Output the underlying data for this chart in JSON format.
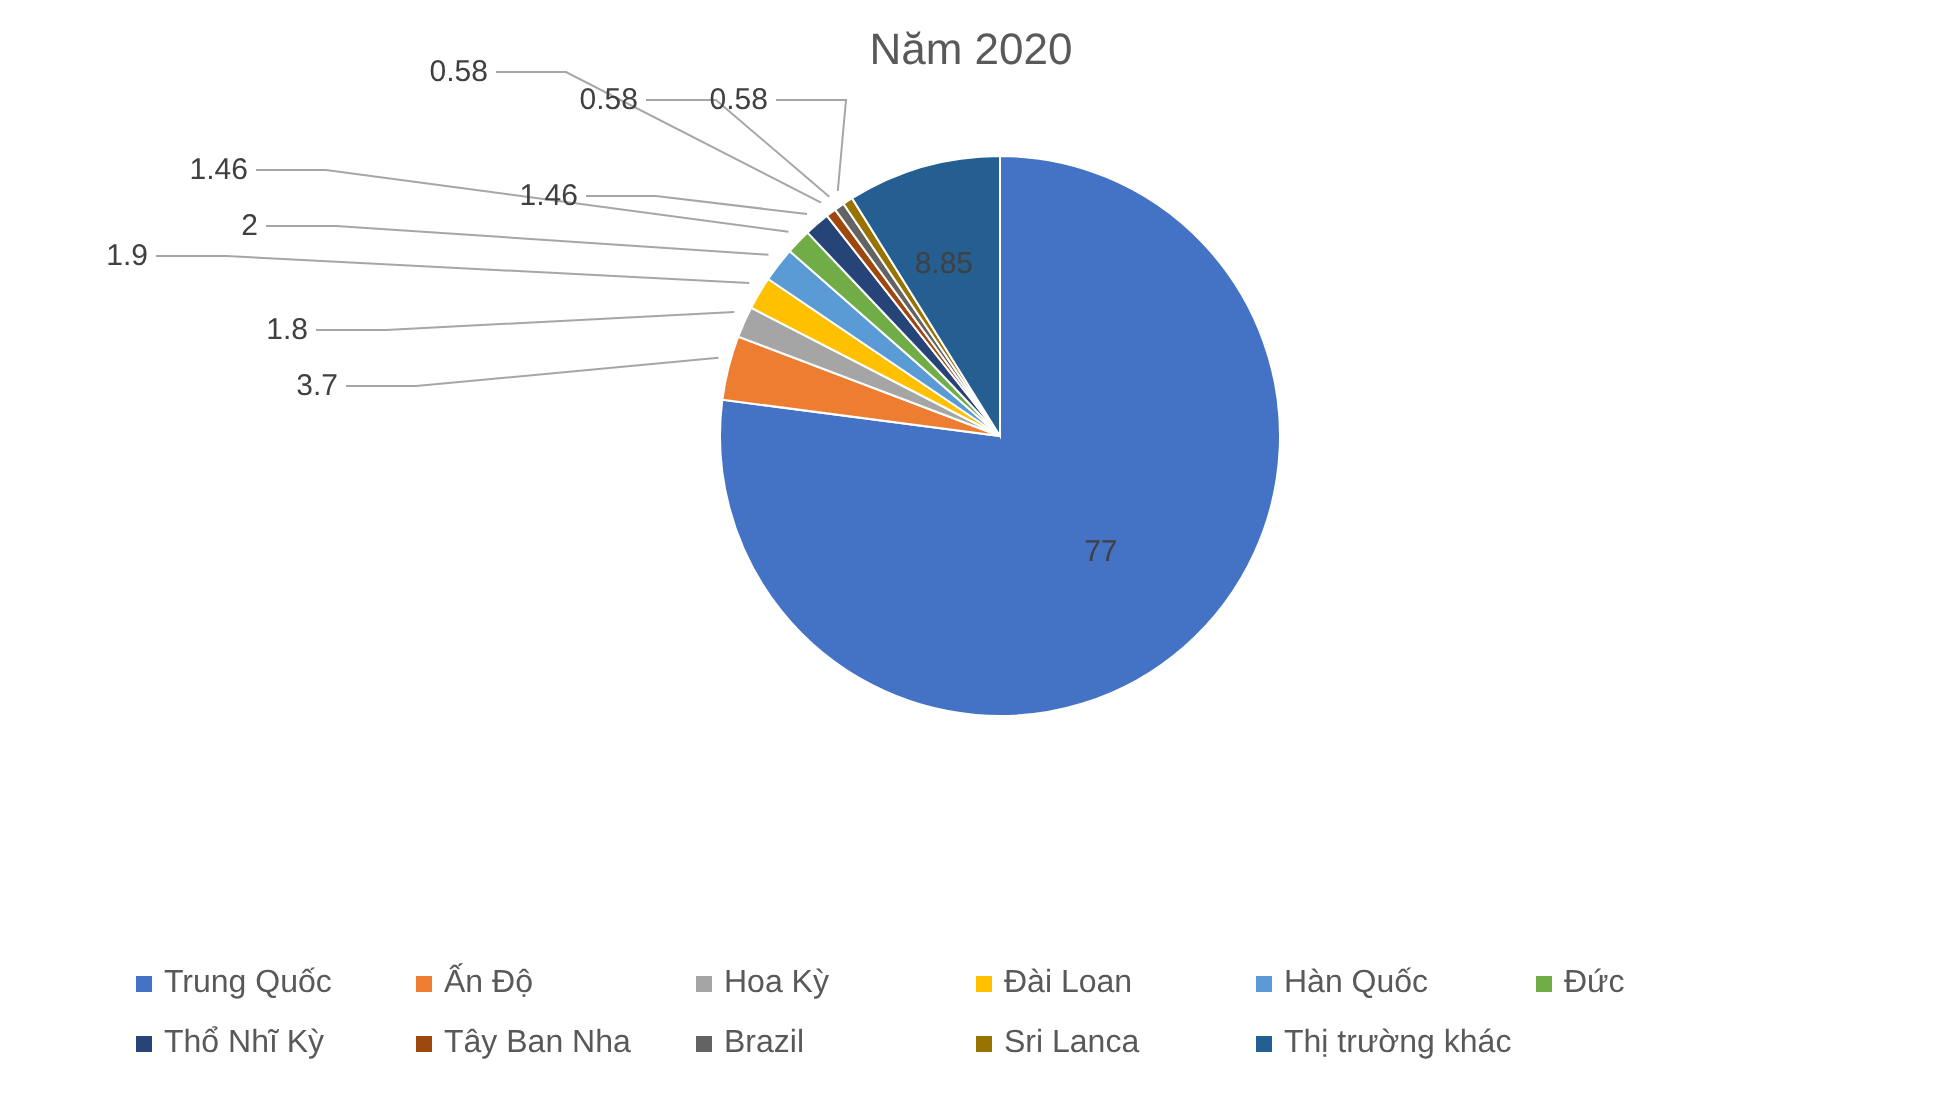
{
  "chart_data": {
    "type": "pie",
    "title": "Năm 2020",
    "categories": [
      "Trung Quốc",
      "Ấn Độ",
      "Hoa Kỳ",
      "Đài Loan",
      "Hàn Quốc",
      "Đức",
      "Thổ Nhĩ Kỳ",
      "Tây Ban Nha",
      "Brazil",
      "Sri Lanca",
      "Thị trường khác"
    ],
    "values": [
      77,
      3.7,
      1.8,
      1.9,
      2,
      1.46,
      1.46,
      0.58,
      0.58,
      0.58,
      8.85
    ],
    "colors": [
      "#4472c4",
      "#ed7d31",
      "#a5a5a5",
      "#ffc000",
      "#5b9bd5",
      "#70ad47",
      "#264478",
      "#9e480e",
      "#636363",
      "#997300",
      "#255e91"
    ],
    "data_labels": true,
    "legend": "bottom"
  }
}
